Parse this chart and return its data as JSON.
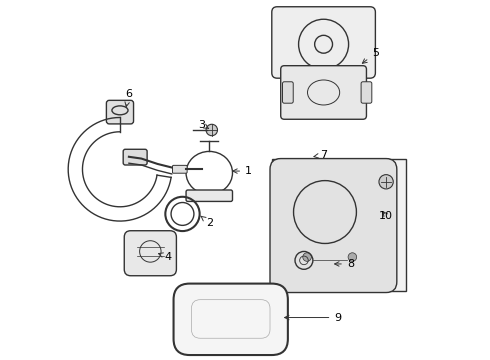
{
  "bg_color": "#ffffff",
  "line_color": "#333333",
  "label_color": "#000000",
  "fig_width": 4.9,
  "fig_height": 3.6,
  "dpi": 100
}
